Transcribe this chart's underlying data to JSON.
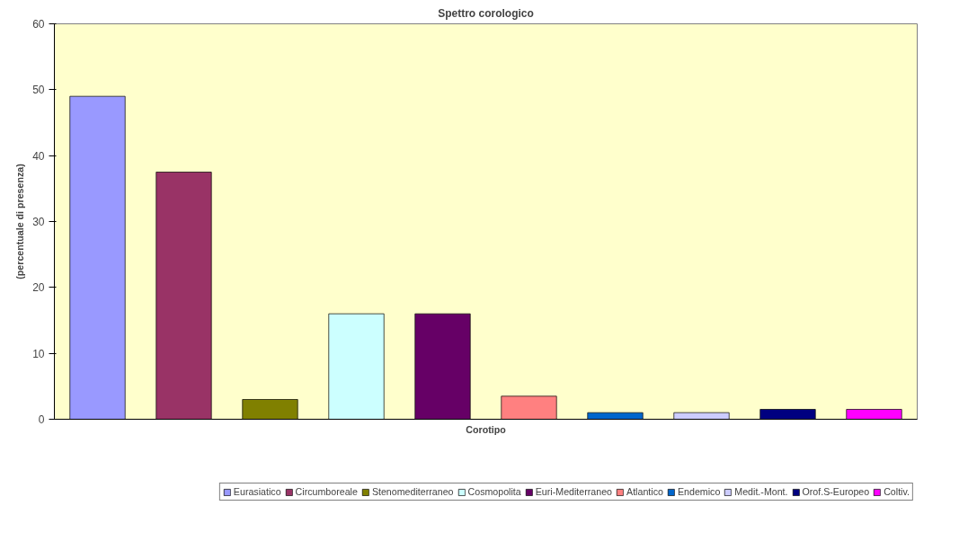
{
  "chart_data": {
    "type": "bar",
    "title": "Spettro corologico",
    "xlabel": "Corotipo",
    "ylabel": "(percentuale di presenza)",
    "categories": [
      null
    ],
    "series": [
      {
        "name": "Eurasiatico",
        "color": "#9999ff",
        "values": [
          49
        ]
      },
      {
        "name": "Circumboreale",
        "color": "#993366",
        "values": [
          37.5
        ]
      },
      {
        "name": "Stenomediterraneo",
        "color": "#808000",
        "values": [
          3
        ]
      },
      {
        "name": "Cosmopolita",
        "color": "#ccffff",
        "values": [
          16
        ]
      },
      {
        "name": "Euri-Mediterraneo",
        "color": "#660066",
        "values": [
          16
        ]
      },
      {
        "name": "Atlantico",
        "color": "#ff8080",
        "values": [
          3.5
        ]
      },
      {
        "name": "Endemico",
        "color": "#0066cc",
        "values": [
          1
        ]
      },
      {
        "name": "Medit.-Mont.",
        "color": "#ccccff",
        "values": [
          1
        ]
      },
      {
        "name": "Orof.S-Europeo",
        "color": "#000080",
        "values": [
          1.5
        ]
      },
      {
        "name": "Coltiv.",
        "color": "#ff00ff",
        "values": [
          1.5
        ]
      }
    ],
    "ylim": [
      0,
      60
    ],
    "yticks": [
      0,
      10,
      20,
      30,
      40,
      50,
      60
    ],
    "grid": false,
    "legend": "bottom"
  }
}
